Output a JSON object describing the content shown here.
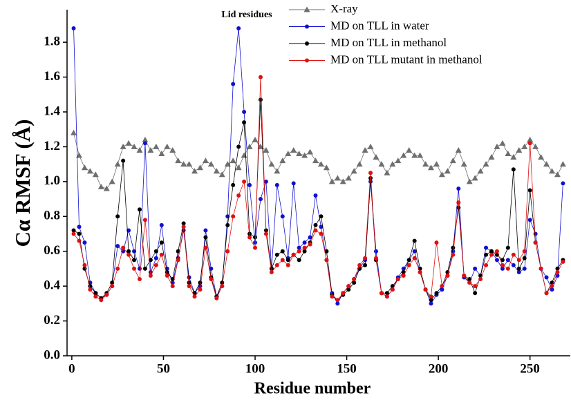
{
  "chart_data": {
    "type": "line",
    "annotation": "Lid residues",
    "x_label": "Residue number",
    "y_label": "Cα  RMSF (Å)",
    "xlim": [
      -2.6,
      272
    ],
    "ylim": [
      0,
      1.987
    ],
    "xticks": [
      0,
      50,
      100,
      150,
      200,
      250
    ],
    "yticks": [
      {
        "value": 0,
        "label": "0.0"
      },
      {
        "value": 0.2,
        "label": "0.2"
      },
      {
        "value": 0.4,
        "label": "0.4"
      },
      {
        "value": 0.6,
        "label": "0.6"
      },
      {
        "value": 0.8,
        "label": "0.8"
      },
      {
        "value": 1.0,
        "label": "1.0"
      },
      {
        "value": 1.2,
        "label": "1.2"
      },
      {
        "value": 1.4,
        "label": "1.4"
      },
      {
        "value": 1.6,
        "label": "1.6"
      },
      {
        "value": 1.8,
        "label": "1.8"
      }
    ],
    "x": [
      1,
      4,
      7,
      10,
      13,
      16,
      19,
      22,
      25,
      28,
      31,
      34,
      37,
      40,
      43,
      46,
      49,
      52,
      55,
      58,
      61,
      64,
      67,
      70,
      73,
      76,
      79,
      82,
      85,
      88,
      91,
      94,
      97,
      100,
      103,
      106,
      109,
      112,
      115,
      118,
      121,
      124,
      127,
      130,
      133,
      136,
      139,
      142,
      145,
      148,
      151,
      154,
      157,
      160,
      163,
      166,
      169,
      172,
      175,
      178,
      181,
      184,
      187,
      190,
      193,
      196,
      199,
      202,
      205,
      208,
      211,
      214,
      217,
      220,
      223,
      226,
      229,
      232,
      235,
      238,
      241,
      244,
      247,
      250,
      253,
      256,
      259,
      262,
      265,
      268
    ],
    "series": [
      {
        "name": "X-ray",
        "color": "#6e6e6e",
        "marker": "triangle",
        "values": [
          1.28,
          1.15,
          1.08,
          1.06,
          1.04,
          0.97,
          0.96,
          1.0,
          1.1,
          1.2,
          1.22,
          1.2,
          1.18,
          1.24,
          1.18,
          1.2,
          1.16,
          1.2,
          1.18,
          1.12,
          1.1,
          1.1,
          1.06,
          1.08,
          1.12,
          1.1,
          1.06,
          1.04,
          1.1,
          1.12,
          1.08,
          1.15,
          1.2,
          1.24,
          1.2,
          1.18,
          1.1,
          1.06,
          1.12,
          1.16,
          1.18,
          1.16,
          1.15,
          1.17,
          1.12,
          1.1,
          1.08,
          1.0,
          1.02,
          1.0,
          1.02,
          1.06,
          1.1,
          1.18,
          1.2,
          1.14,
          1.1,
          1.05,
          1.1,
          1.12,
          1.15,
          1.18,
          1.15,
          1.15,
          1.1,
          1.08,
          1.1,
          1.04,
          1.06,
          1.12,
          1.18,
          1.1,
          1.0,
          1.02,
          1.06,
          1.1,
          1.14,
          1.2,
          1.22,
          1.16,
          1.14,
          1.18,
          1.2,
          1.24,
          1.2,
          1.14,
          1.1,
          1.06,
          1.04,
          1.1
        ]
      },
      {
        "name": "MD on TLL in water",
        "color": "#1010d0",
        "marker": "circle",
        "values": [
          1.88,
          0.74,
          0.65,
          0.42,
          0.36,
          0.33,
          0.35,
          0.4,
          0.63,
          0.6,
          0.72,
          0.6,
          0.5,
          1.22,
          0.48,
          0.56,
          0.75,
          0.5,
          0.42,
          0.56,
          0.72,
          0.45,
          0.36,
          0.4,
          0.72,
          0.5,
          0.34,
          0.4,
          0.8,
          1.56,
          1.88,
          1.4,
          0.98,
          0.65,
          0.9,
          1.0,
          0.5,
          0.98,
          0.8,
          0.56,
          0.99,
          0.62,
          0.65,
          0.68,
          0.92,
          0.74,
          0.55,
          0.36,
          0.3,
          0.36,
          0.4,
          0.44,
          0.5,
          0.55,
          1.0,
          0.6,
          0.36,
          0.34,
          0.38,
          0.45,
          0.5,
          0.55,
          0.6,
          0.48,
          0.38,
          0.3,
          0.35,
          0.38,
          0.46,
          0.6,
          0.96,
          0.45,
          0.42,
          0.5,
          0.46,
          0.62,
          0.6,
          0.55,
          0.5,
          0.55,
          0.52,
          0.48,
          0.5,
          0.78,
          0.7,
          0.5,
          0.45,
          0.38,
          0.46,
          0.99
        ]
      },
      {
        "name": "MD on TLL in methanol",
        "color": "#000000",
        "marker": "circle",
        "values": [
          0.72,
          0.7,
          0.5,
          0.4,
          0.36,
          0.33,
          0.36,
          0.42,
          0.8,
          1.12,
          0.6,
          0.55,
          0.84,
          0.5,
          0.55,
          0.6,
          0.65,
          0.48,
          0.44,
          0.6,
          0.76,
          0.42,
          0.36,
          0.42,
          0.68,
          0.45,
          0.34,
          0.42,
          0.75,
          0.98,
          1.2,
          1.34,
          0.7,
          0.68,
          1.47,
          0.72,
          0.5,
          0.58,
          0.6,
          0.55,
          0.58,
          0.55,
          0.6,
          0.65,
          0.75,
          0.8,
          0.6,
          0.35,
          0.32,
          0.35,
          0.38,
          0.42,
          0.5,
          0.52,
          1.02,
          0.55,
          0.36,
          0.36,
          0.4,
          0.44,
          0.48,
          0.55,
          0.66,
          0.5,
          0.38,
          0.32,
          0.36,
          0.4,
          0.48,
          0.62,
          0.85,
          0.46,
          0.44,
          0.36,
          0.46,
          0.58,
          0.6,
          0.58,
          0.55,
          0.62,
          1.07,
          0.5,
          0.56,
          0.95,
          0.65,
          0.5,
          0.36,
          0.42,
          0.5,
          0.55
        ]
      },
      {
        "name": "MD on TLL mutant in methanol",
        "color": "#e01010",
        "marker": "circle",
        "values": [
          0.7,
          0.66,
          0.52,
          0.38,
          0.34,
          0.32,
          0.35,
          0.4,
          0.5,
          0.62,
          0.58,
          0.5,
          0.44,
          0.78,
          0.46,
          0.52,
          0.58,
          0.46,
          0.4,
          0.55,
          0.74,
          0.4,
          0.34,
          0.38,
          0.62,
          0.44,
          0.33,
          0.4,
          0.6,
          0.8,
          0.92,
          1.0,
          0.68,
          0.62,
          1.6,
          0.7,
          0.48,
          0.52,
          0.55,
          0.52,
          0.58,
          0.6,
          0.62,
          0.64,
          0.72,
          0.7,
          0.55,
          0.34,
          0.32,
          0.36,
          0.4,
          0.44,
          0.52,
          0.56,
          1.05,
          0.56,
          0.36,
          0.34,
          0.38,
          0.44,
          0.46,
          0.52,
          0.56,
          0.48,
          0.38,
          0.34,
          0.65,
          0.4,
          0.46,
          0.58,
          0.88,
          0.46,
          0.42,
          0.4,
          0.44,
          0.52,
          0.58,
          0.6,
          0.52,
          0.5,
          0.58,
          0.55,
          0.6,
          1.22,
          0.65,
          0.5,
          0.36,
          0.4,
          0.48,
          0.54
        ]
      }
    ]
  }
}
